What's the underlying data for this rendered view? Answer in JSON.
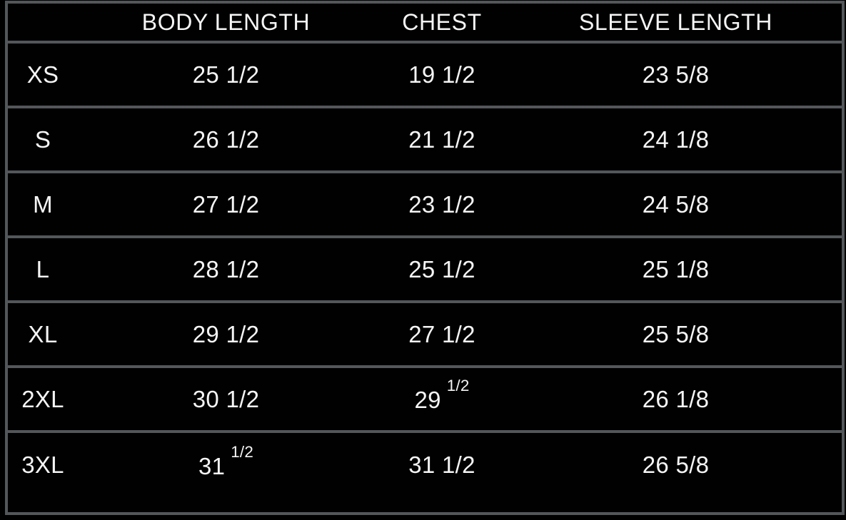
{
  "page": {
    "background_color": "#000000",
    "text_color": "#f5f5f5",
    "border_color": "#53575a"
  },
  "chart_data": {
    "type": "table",
    "title": "",
    "columns": [
      "",
      "BODY LENGTH",
      "CHEST",
      "SLEEVE LENGTH"
    ],
    "rows": [
      {
        "size": "XS",
        "body_length": "25 1/2",
        "chest": "19 1/2",
        "sleeve_length": "23 5/8"
      },
      {
        "size": "S",
        "body_length": "26 1/2",
        "chest": "21 1/2",
        "sleeve_length": "24 1/8"
      },
      {
        "size": "M",
        "body_length": "27 1/2",
        "chest": "23 1/2",
        "sleeve_length": "24 5/8"
      },
      {
        "size": "L",
        "body_length": "28 1/2",
        "chest": "25 1/2",
        "sleeve_length": "25 1/8"
      },
      {
        "size": "XL",
        "body_length": "29 1/2",
        "chest": "27 1/2",
        "sleeve_length": "25 5/8"
      },
      {
        "size": "2XL",
        "body_length": "30 1/2",
        "chest": {
          "main": "29",
          "sup": "1/2"
        },
        "sleeve_length": "26 1/8"
      },
      {
        "size": "3XL",
        "body_length": {
          "main": "31",
          "sup": "1/2"
        },
        "chest": "31 1/2",
        "sleeve_length": "26 5/8"
      }
    ]
  }
}
